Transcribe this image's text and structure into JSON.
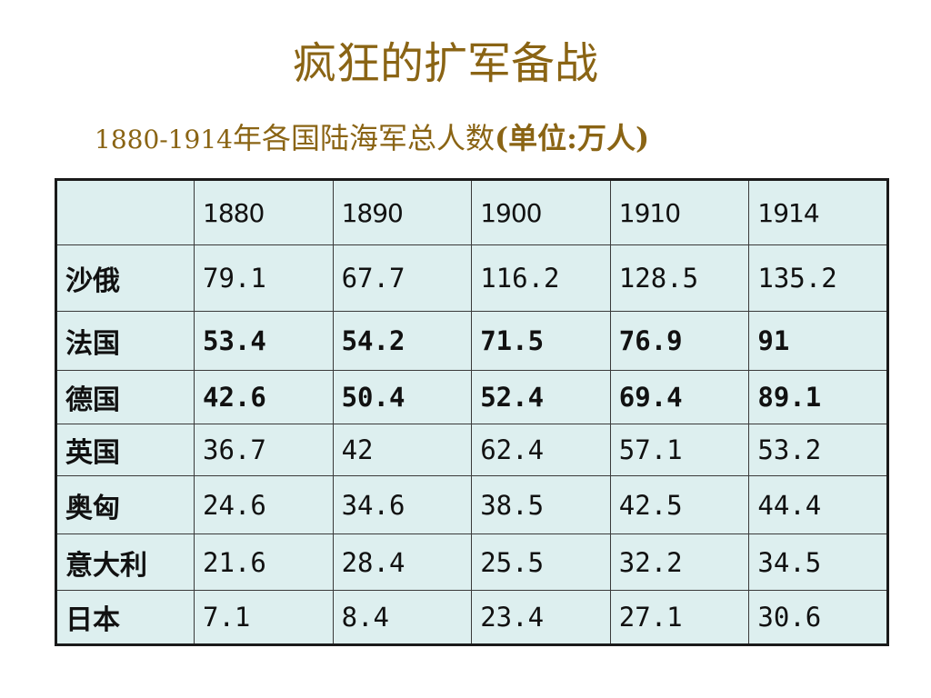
{
  "slide": {
    "title": "疯狂的扩军备战",
    "subtitle_years": "1880-1914",
    "subtitle_text": "年各国陆海军总人数",
    "subtitle_unit": "(单位:万人)"
  },
  "table": {
    "header_corner": "",
    "years": [
      "1880",
      "1890",
      "1900",
      "1910",
      "1914"
    ],
    "rows": [
      {
        "country": "沙俄",
        "values": [
          "79.1",
          "67.7",
          "116.2",
          "128.5",
          "135.2"
        ]
      },
      {
        "country": "法国",
        "values": [
          "53.4",
          "54.2",
          "71.5",
          "76.9",
          "91"
        ]
      },
      {
        "country": "德国",
        "values": [
          "42.6",
          "50.4",
          "52.4",
          "69.4",
          "89.1"
        ]
      },
      {
        "country": "英国",
        "values": [
          "36.7",
          "42",
          "62.4",
          "57.1",
          "53.2"
        ]
      },
      {
        "country": "奥匈",
        "values": [
          "24.6",
          "34.6",
          "38.5",
          "42.5",
          "44.4"
        ]
      },
      {
        "country": "意大利",
        "values": [
          "21.6",
          "28.4",
          "25.5",
          "32.2",
          "34.5"
        ]
      },
      {
        "country": "日本",
        "values": [
          "7.1",
          "8.4",
          "23.4",
          "27.1",
          "30.6"
        ]
      }
    ]
  },
  "colors": {
    "title": "#8a6414",
    "table_bg": "#ddefef",
    "border": "#1a1a1a"
  }
}
